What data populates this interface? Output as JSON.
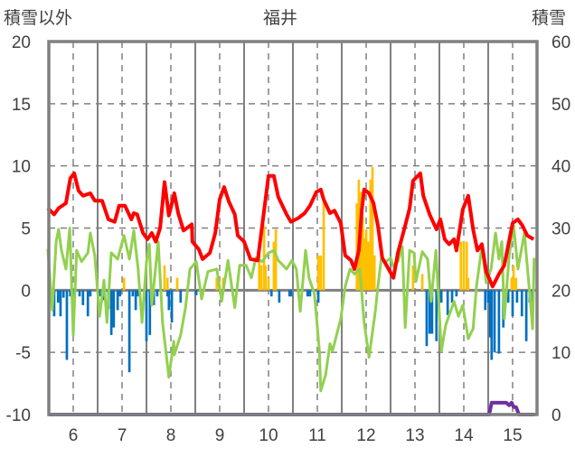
{
  "chart_data": {
    "type": "line",
    "title": "福井",
    "ylabel_left": "積雪以外",
    "ylabel_right": "積雪",
    "xlim": [
      5.5,
      15.5
    ],
    "ylim_left": [
      -10,
      20
    ],
    "ylim_right": [
      0,
      60
    ],
    "x_ticks": [
      "6",
      "7",
      "8",
      "9",
      "10",
      "11",
      "12",
      "13",
      "14",
      "15"
    ],
    "y_ticks_left": [
      "20",
      "15",
      "10",
      "5",
      "0",
      "-5",
      "-10"
    ],
    "y_ticks_right": [
      "60",
      "50",
      "40",
      "30",
      "20",
      "10",
      "0"
    ],
    "grid": true,
    "colors": {
      "red": "#ff0000",
      "green": "#92d050",
      "orange": "#ffc000",
      "blue": "#0070c0",
      "purple": "#7030a0",
      "axis": "#808080"
    },
    "series": [
      {
        "name": "red-line",
        "axis": "left",
        "color": "#ff0000",
        "points": [
          [
            5.48,
            6.6
          ],
          [
            5.61,
            6.1
          ],
          [
            5.7,
            6.6
          ],
          [
            5.85,
            7.0
          ],
          [
            5.94,
            9.0
          ],
          [
            6.02,
            9.4
          ],
          [
            6.11,
            8.0
          ],
          [
            6.2,
            7.6
          ],
          [
            6.35,
            7.8
          ],
          [
            6.44,
            7.2
          ],
          [
            6.59,
            7.2
          ],
          [
            6.72,
            5.7
          ],
          [
            6.85,
            5.5
          ],
          [
            6.94,
            6.8
          ],
          [
            7.06,
            6.8
          ],
          [
            7.19,
            5.7
          ],
          [
            7.24,
            6.2
          ],
          [
            7.31,
            6.1
          ],
          [
            7.43,
            4.6
          ],
          [
            7.52,
            4.1
          ],
          [
            7.61,
            4.6
          ],
          [
            7.69,
            3.9
          ],
          [
            7.78,
            5.0
          ],
          [
            7.87,
            8.7
          ],
          [
            7.96,
            6.0
          ],
          [
            8.07,
            7.8
          ],
          [
            8.15,
            6.2
          ],
          [
            8.26,
            4.8
          ],
          [
            8.43,
            5.3
          ],
          [
            8.44,
            3.9
          ],
          [
            8.57,
            3.3
          ],
          [
            8.65,
            2.5
          ],
          [
            8.8,
            3.0
          ],
          [
            8.91,
            4.6
          ],
          [
            9.0,
            7.3
          ],
          [
            9.09,
            8.3
          ],
          [
            9.19,
            7.1
          ],
          [
            9.31,
            6.1
          ],
          [
            9.37,
            4.4
          ],
          [
            9.5,
            3.9
          ],
          [
            9.63,
            2.5
          ],
          [
            9.78,
            2.4
          ],
          [
            9.91,
            6.4
          ],
          [
            10.0,
            9.2
          ],
          [
            10.11,
            9.2
          ],
          [
            10.2,
            7.5
          ],
          [
            10.37,
            6.1
          ],
          [
            10.46,
            5.5
          ],
          [
            10.61,
            5.8
          ],
          [
            10.74,
            6.2
          ],
          [
            10.85,
            6.8
          ],
          [
            10.98,
            7.9
          ],
          [
            11.07,
            8.1
          ],
          [
            11.13,
            7.3
          ],
          [
            11.26,
            6.2
          ],
          [
            11.35,
            6.4
          ],
          [
            11.48,
            5.4
          ],
          [
            11.57,
            2.8
          ],
          [
            11.69,
            2.4
          ],
          [
            11.76,
            1.7
          ],
          [
            11.85,
            3.2
          ],
          [
            11.91,
            6.4
          ],
          [
            11.96,
            8.1
          ],
          [
            12.06,
            7.8
          ],
          [
            12.15,
            7.0
          ],
          [
            12.24,
            5.2
          ],
          [
            12.33,
            2.6
          ],
          [
            12.46,
            1.7
          ],
          [
            12.56,
            1.0
          ],
          [
            12.65,
            3.0
          ],
          [
            12.8,
            5.2
          ],
          [
            12.89,
            6.6
          ],
          [
            12.96,
            8.8
          ],
          [
            13.11,
            9.4
          ],
          [
            13.17,
            7.6
          ],
          [
            13.3,
            6.1
          ],
          [
            13.44,
            4.9
          ],
          [
            13.52,
            5.7
          ],
          [
            13.61,
            4.1
          ],
          [
            13.7,
            3.7
          ],
          [
            13.8,
            4.1
          ],
          [
            13.85,
            3.2
          ],
          [
            13.98,
            6.5
          ],
          [
            14.09,
            7.6
          ],
          [
            14.19,
            4.9
          ],
          [
            14.28,
            3.2
          ],
          [
            14.37,
            3.7
          ],
          [
            14.46,
            1.5
          ],
          [
            14.59,
            0.3
          ],
          [
            14.72,
            1.3
          ],
          [
            14.83,
            2.0
          ],
          [
            15.0,
            5.4
          ],
          [
            15.11,
            5.7
          ],
          [
            15.2,
            5.2
          ],
          [
            15.3,
            4.4
          ],
          [
            15.43,
            4.1
          ]
        ]
      },
      {
        "name": "green-line",
        "axis": "left",
        "color": "#92d050",
        "points": [
          [
            5.48,
            3.3
          ],
          [
            5.57,
            -1.6
          ],
          [
            5.65,
            3.9
          ],
          [
            5.7,
            4.9
          ],
          [
            5.76,
            3.2
          ],
          [
            5.85,
            1.7
          ],
          [
            5.93,
            5.0
          ],
          [
            6.0,
            -3.6
          ],
          [
            6.07,
            3.2
          ],
          [
            6.17,
            2.3
          ],
          [
            6.3,
            3.0
          ],
          [
            6.35,
            4.6
          ],
          [
            6.44,
            2.8
          ],
          [
            6.54,
            -2.1
          ],
          [
            6.63,
            0.8
          ],
          [
            6.69,
            -2.6
          ],
          [
            6.78,
            3.0
          ],
          [
            6.91,
            2.5
          ],
          [
            7.04,
            4.4
          ],
          [
            7.15,
            2.5
          ],
          [
            7.24,
            4.8
          ],
          [
            7.33,
            1.7
          ],
          [
            7.41,
            -2.6
          ],
          [
            7.5,
            2.3
          ],
          [
            7.56,
            3.7
          ],
          [
            7.61,
            -1.2
          ],
          [
            7.74,
            3.9
          ],
          [
            7.83,
            -2.6
          ],
          [
            7.96,
            -7.0
          ],
          [
            8.06,
            -4.1
          ],
          [
            8.07,
            -5.2
          ],
          [
            8.2,
            -3.6
          ],
          [
            8.3,
            -1.4
          ],
          [
            8.39,
            1.7
          ],
          [
            8.52,
            2.3
          ],
          [
            8.63,
            -0.7
          ],
          [
            8.76,
            1.5
          ],
          [
            8.94,
            1.7
          ],
          [
            9.04,
            -0.9
          ],
          [
            9.17,
            2.4
          ],
          [
            9.31,
            -1.4
          ],
          [
            9.41,
            2.0
          ],
          [
            9.54,
            2.0
          ],
          [
            9.65,
            1.0
          ],
          [
            9.74,
            2.6
          ],
          [
            9.87,
            2.3
          ],
          [
            10.0,
            3.0
          ],
          [
            10.11,
            3.2
          ],
          [
            10.2,
            2.4
          ],
          [
            10.37,
            1.7
          ],
          [
            10.48,
            2.4
          ],
          [
            10.57,
            1.7
          ],
          [
            10.65,
            -1.7
          ],
          [
            10.76,
            3.2
          ],
          [
            10.83,
            1.0
          ],
          [
            10.94,
            -0.3
          ],
          [
            11.04,
            -4.8
          ],
          [
            11.07,
            -8.1
          ],
          [
            11.17,
            -6.8
          ],
          [
            11.26,
            -4.3
          ],
          [
            11.31,
            -4.9
          ],
          [
            11.48,
            -2.3
          ],
          [
            11.57,
            0.3
          ],
          [
            11.67,
            1.7
          ],
          [
            11.76,
            1.3
          ],
          [
            11.87,
            1.7
          ],
          [
            11.96,
            -2.6
          ],
          [
            12.06,
            -5.4
          ],
          [
            12.19,
            -1.6
          ],
          [
            12.24,
            0.3
          ],
          [
            12.31,
            2.5
          ],
          [
            12.41,
            2.3
          ],
          [
            12.5,
            2.6
          ],
          [
            12.56,
            1.9
          ],
          [
            12.65,
            2.3
          ],
          [
            12.74,
            3.5
          ],
          [
            12.8,
            -3.0
          ],
          [
            12.89,
            3.2
          ],
          [
            12.98,
            3.0
          ],
          [
            13.02,
            0.7
          ],
          [
            13.15,
            3.1
          ],
          [
            13.26,
            2.5
          ],
          [
            13.33,
            -0.9
          ],
          [
            13.43,
            3.2
          ],
          [
            13.54,
            -4.9
          ],
          [
            13.63,
            -2.8
          ],
          [
            13.8,
            -0.9
          ],
          [
            13.89,
            -2.1
          ],
          [
            13.98,
            -1.2
          ],
          [
            14.09,
            -3.9
          ],
          [
            14.19,
            -3.1
          ],
          [
            14.26,
            0.3
          ],
          [
            14.37,
            3.5
          ],
          [
            14.46,
            0.6
          ],
          [
            14.56,
            1.7
          ],
          [
            14.65,
            4.6
          ],
          [
            14.72,
            2.5
          ],
          [
            14.78,
            3.9
          ],
          [
            14.83,
            -2.3
          ],
          [
            14.93,
            2.8
          ],
          [
            15.02,
            5.2
          ],
          [
            15.11,
            1.7
          ],
          [
            15.24,
            4.6
          ],
          [
            15.37,
            -1.2
          ],
          [
            15.41,
            -3.1
          ],
          [
            15.44,
            2.6
          ]
        ]
      },
      {
        "name": "purple-line",
        "axis": "right",
        "color": "#7030a0",
        "points": [
          [
            5.5,
            0
          ],
          [
            14.52,
            0
          ],
          [
            14.57,
            1.9
          ],
          [
            14.87,
            1.9
          ],
          [
            14.93,
            1.5
          ],
          [
            14.98,
            1.9
          ],
          [
            15.02,
            1.2
          ],
          [
            15.07,
            1.2
          ],
          [
            15.13,
            0
          ],
          [
            15.45,
            0
          ]
        ]
      },
      {
        "name": "orange-bars",
        "axis": "left",
        "type": "bar",
        "color": "#ffc000",
        "points": [
          [
            7.04,
            1.0
          ],
          [
            7.87,
            2.0
          ],
          [
            7.93,
            1.0
          ],
          [
            8.13,
            1.0
          ],
          [
            8.94,
            1.0
          ],
          [
            9.07,
            1.0
          ],
          [
            9.81,
            3.9
          ],
          [
            9.85,
            2.0
          ],
          [
            9.91,
            5.2
          ],
          [
            9.94,
            2.0
          ],
          [
            10.0,
            1.0
          ],
          [
            10.11,
            3.9
          ],
          [
            10.15,
            4.9
          ],
          [
            11.02,
            2.8
          ],
          [
            11.07,
            2.8
          ],
          [
            11.13,
            7.1
          ],
          [
            11.81,
            7.0
          ],
          [
            11.85,
            8.9
          ],
          [
            11.89,
            7.9
          ],
          [
            11.93,
            5.9
          ],
          [
            11.96,
            4.2
          ],
          [
            12.0,
            4.9
          ],
          [
            12.04,
            3.9
          ],
          [
            12.09,
            8.9
          ],
          [
            12.13,
            9.9
          ],
          [
            12.17,
            2.8
          ],
          [
            12.96,
            2.0
          ],
          [
            13.15,
            1.3
          ],
          [
            13.94,
            3.9
          ],
          [
            14.0,
            3.9
          ],
          [
            14.06,
            3.9
          ],
          [
            14.09,
            1.0
          ],
          [
            14.98,
            1.0
          ],
          [
            15.02,
            2.0
          ],
          [
            15.07,
            1.0
          ]
        ]
      },
      {
        "name": "blue-bars",
        "axis": "left",
        "type": "bar",
        "color": "#0070c0",
        "points": [
          [
            5.5,
            -3.0
          ],
          [
            5.56,
            -1.0
          ],
          [
            5.61,
            -2.1
          ],
          [
            5.69,
            -1.0
          ],
          [
            5.74,
            -2.1
          ],
          [
            5.8,
            -0.6
          ],
          [
            5.87,
            -5.6
          ],
          [
            5.94,
            -0.5
          ],
          [
            6.02,
            -1.2
          ],
          [
            6.13,
            -0.5
          ],
          [
            6.2,
            -1.2
          ],
          [
            6.3,
            -2.1
          ],
          [
            6.35,
            -0.5
          ],
          [
            6.54,
            -0.5
          ],
          [
            6.63,
            -0.8
          ],
          [
            6.72,
            -1.5
          ],
          [
            6.78,
            -3.6
          ],
          [
            6.83,
            -3.0
          ],
          [
            6.91,
            -1.6
          ],
          [
            6.96,
            -0.5
          ],
          [
            7.15,
            -6.6
          ],
          [
            7.22,
            -0.5
          ],
          [
            7.28,
            -1.6
          ],
          [
            7.33,
            -0.5
          ],
          [
            7.5,
            -4.1
          ],
          [
            7.57,
            -3.6
          ],
          [
            7.65,
            -1.2
          ],
          [
            7.72,
            -0.5
          ],
          [
            7.93,
            -0.5
          ],
          [
            7.96,
            -1.6
          ],
          [
            8.02,
            -2.6
          ],
          [
            8.2,
            -1.0
          ],
          [
            8.52,
            -0.4
          ],
          [
            10.06,
            -0.5
          ],
          [
            10.22,
            -1.0
          ],
          [
            10.43,
            -0.5
          ],
          [
            10.46,
            -0.5
          ],
          [
            10.8,
            -0.5
          ],
          [
            10.85,
            -0.5
          ],
          [
            11.02,
            -1.0
          ],
          [
            13.24,
            -4.5
          ],
          [
            13.3,
            -3.5
          ],
          [
            13.35,
            -3.5
          ],
          [
            13.44,
            -4.1
          ],
          [
            13.54,
            -1.0
          ],
          [
            13.67,
            -2.0
          ],
          [
            13.76,
            -1.0
          ],
          [
            13.85,
            -0.5
          ],
          [
            14.44,
            -1.6
          ],
          [
            14.5,
            -1.0
          ],
          [
            14.54,
            -3.8
          ],
          [
            14.57,
            -5.6
          ],
          [
            14.63,
            -5.0
          ],
          [
            14.72,
            -5.1
          ],
          [
            14.81,
            -3.0
          ],
          [
            14.91,
            -1.0
          ],
          [
            15.0,
            -2.1
          ],
          [
            15.09,
            -1.0
          ],
          [
            15.19,
            -2.1
          ],
          [
            15.28,
            -4.1
          ],
          [
            15.35,
            -1.0
          ],
          [
            15.41,
            -3.0
          ]
        ]
      }
    ]
  }
}
